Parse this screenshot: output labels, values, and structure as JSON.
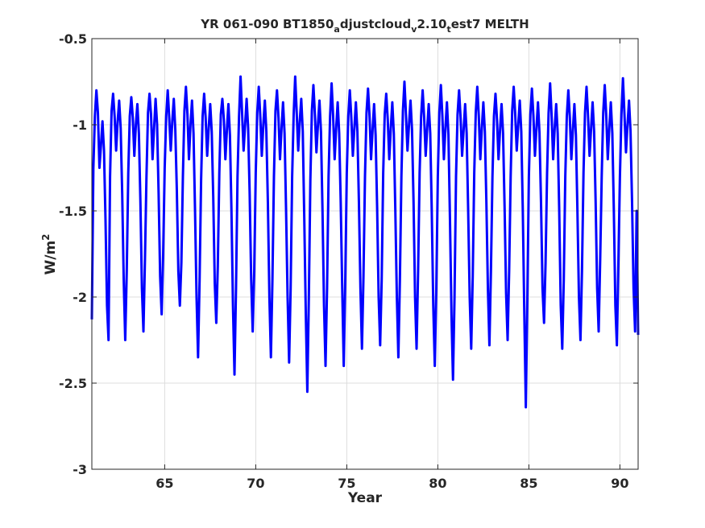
{
  "chart_data": {
    "type": "line",
    "title_parts": {
      "t1": "YR 061-090 BT1850",
      "s1": "a",
      "t2": "djustcloud",
      "s2": "v",
      "t3": "2.10",
      "s3": "t",
      "t4": "est7 MELTH"
    },
    "xlabel": "Year",
    "ylabel_main": "W/m",
    "ylabel_sup": "2",
    "xlim": [
      61,
      91
    ],
    "ylim": [
      -3,
      -0.5
    ],
    "xticks": [
      65,
      70,
      75,
      80,
      85,
      90
    ],
    "xtick_labels": [
      "65",
      "70",
      "75",
      "80",
      "85",
      "90"
    ],
    "yticks": [
      -0.5,
      -1,
      -1.5,
      -2,
      -2.5,
      -3
    ],
    "ytick_labels": [
      "-0.5",
      "-1",
      "-1.5",
      "-2",
      "-2.5",
      "-3"
    ],
    "grid": true,
    "series": [
      {
        "color": "#0000ff",
        "cycle_start_year": 61,
        "samples_per_year": 12,
        "values": [
          -2.13,
          -1.25,
          -0.95,
          -0.8,
          -0.93,
          -1.25,
          -1.12,
          -0.98,
          -1.15,
          -1.55,
          -2.05,
          -2.25,
          -1.3,
          -0.92,
          -0.82,
          -0.95,
          -1.15,
          -0.98,
          -0.86,
          -1.02,
          -1.4,
          -1.9,
          -2.25,
          -1.85,
          -1.28,
          -0.95,
          -0.84,
          -0.96,
          -1.18,
          -1.0,
          -0.88,
          -1.05,
          -1.45,
          -1.95,
          -2.2,
          -1.78,
          -1.3,
          -0.93,
          -0.82,
          -0.94,
          -1.2,
          -1.02,
          -0.85,
          -1.0,
          -1.4,
          -1.88,
          -2.1,
          -1.75,
          -1.25,
          -0.95,
          -0.8,
          -0.96,
          -1.15,
          -0.98,
          -0.85,
          -1.03,
          -1.38,
          -1.85,
          -2.05,
          -1.8,
          -1.3,
          -0.92,
          -0.78,
          -0.94,
          -1.2,
          -1.0,
          -0.86,
          -1.05,
          -1.5,
          -2.0,
          -2.35,
          -1.9,
          -1.32,
          -0.95,
          -0.82,
          -0.96,
          -1.18,
          -1.02,
          -0.88,
          -1.04,
          -1.42,
          -1.92,
          -2.15,
          -1.82,
          -1.28,
          -0.94,
          -0.85,
          -0.97,
          -1.2,
          -1.03,
          -0.88,
          -1.06,
          -1.5,
          -2.05,
          -2.45,
          -1.95,
          -1.3,
          -0.95,
          -0.72,
          -0.93,
          -1.15,
          -1.0,
          -0.85,
          -1.02,
          -1.4,
          -1.9,
          -2.2,
          -1.85,
          -1.28,
          -0.93,
          -0.78,
          -0.95,
          -1.18,
          -1.0,
          -0.86,
          -1.04,
          -1.45,
          -2.0,
          -2.35,
          -1.9,
          -1.3,
          -0.92,
          -0.8,
          -0.96,
          -1.2,
          -1.02,
          -0.87,
          -1.05,
          -1.5,
          -2.0,
          -2.38,
          -1.95,
          -1.3,
          -0.94,
          -0.72,
          -0.93,
          -1.15,
          -0.98,
          -0.85,
          -1.04,
          -1.55,
          -2.1,
          -2.55,
          -2.0,
          -1.32,
          -0.92,
          -0.77,
          -0.94,
          -1.16,
          -1.0,
          -0.86,
          -1.04,
          -1.5,
          -2.05,
          -2.4,
          -1.95,
          -1.3,
          -0.95,
          -0.76,
          -0.95,
          -1.2,
          -1.02,
          -0.87,
          -1.05,
          -1.45,
          -1.95,
          -2.4,
          -1.9,
          -1.28,
          -0.95,
          -0.8,
          -0.96,
          -1.18,
          -1.02,
          -0.87,
          -1.04,
          -1.45,
          -1.95,
          -2.3,
          -1.88,
          -1.3,
          -0.93,
          -0.79,
          -0.95,
          -1.2,
          -1.03,
          -0.88,
          -1.06,
          -1.48,
          -2.0,
          -2.28,
          -1.9,
          -1.28,
          -0.94,
          -0.82,
          -0.97,
          -1.2,
          -1.02,
          -0.87,
          -1.05,
          -1.5,
          -2.0,
          -2.35,
          -1.9,
          -1.3,
          -0.92,
          -0.75,
          -0.94,
          -1.15,
          -1.0,
          -0.86,
          -1.03,
          -1.45,
          -2.0,
          -2.3,
          -1.85,
          -1.28,
          -0.95,
          -0.8,
          -0.96,
          -1.18,
          -1.02,
          -0.88,
          -1.05,
          -1.5,
          -2.05,
          -2.4,
          -1.95,
          -1.3,
          -0.93,
          -0.77,
          -0.95,
          -1.2,
          -1.02,
          -0.87,
          -1.06,
          -1.55,
          -2.1,
          -2.48,
          -2.0,
          -1.3,
          -0.94,
          -0.8,
          -0.96,
          -1.18,
          -1.03,
          -0.88,
          -1.05,
          -1.5,
          -2.0,
          -2.3,
          -1.88,
          -1.28,
          -0.93,
          -0.78,
          -0.95,
          -1.2,
          -1.02,
          -0.87,
          -1.04,
          -1.45,
          -1.95,
          -2.28,
          -1.85,
          -1.3,
          -0.95,
          -0.82,
          -0.97,
          -1.2,
          -1.03,
          -0.88,
          -1.05,
          -1.48,
          -1.98,
          -2.25,
          -1.85,
          -1.3,
          -0.92,
          -0.78,
          -0.94,
          -1.15,
          -1.0,
          -0.86,
          -1.04,
          -1.5,
          -2.1,
          -2.64,
          -2.0,
          -1.3,
          -0.94,
          -0.79,
          -0.95,
          -1.18,
          -1.02,
          -0.87,
          -1.05,
          -1.45,
          -1.95,
          -2.15,
          -1.8,
          -1.28,
          -0.93,
          -0.76,
          -0.95,
          -1.2,
          -1.02,
          -0.88,
          -1.05,
          -1.5,
          -2.05,
          -2.3,
          -1.9,
          -1.3,
          -0.95,
          -0.8,
          -0.96,
          -1.2,
          -1.03,
          -0.88,
          -1.06,
          -1.5,
          -2.0,
          -2.25,
          -1.85,
          -1.28,
          -0.93,
          -0.78,
          -0.95,
          -1.18,
          -1.02,
          -0.87,
          -1.04,
          -1.45,
          -1.95,
          -2.2,
          -1.78,
          -1.3,
          -0.93,
          -0.77,
          -0.95,
          -1.2,
          -1.02,
          -0.87,
          -1.05,
          -1.5,
          -2.05,
          -2.28,
          -1.8,
          -1.3,
          -0.94,
          -0.73,
          -0.94,
          -1.16,
          -1.0,
          -0.86,
          -1.04,
          -1.45,
          -1.95,
          -2.2,
          -1.5,
          -2.22
        ]
      }
    ]
  }
}
